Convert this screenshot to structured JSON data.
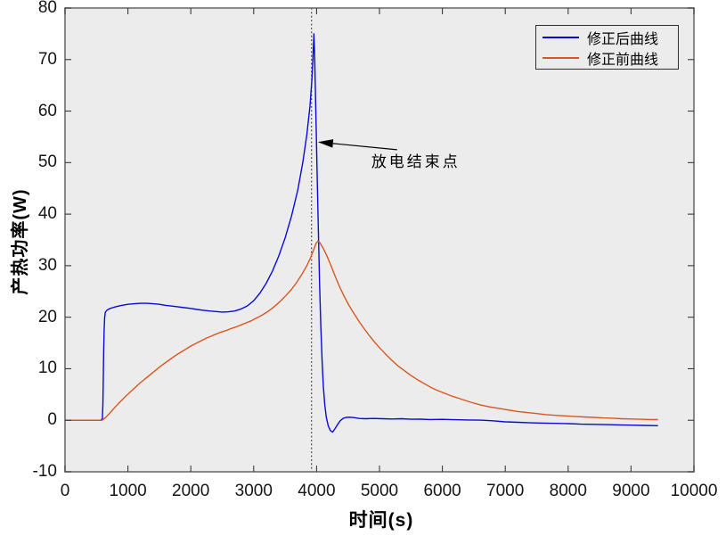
{
  "figure": {
    "background": "#ffffff",
    "plot_bg": "#ececec",
    "axis_color": "#6e6e6e",
    "tick_color": "#3a3a3a",
    "text_color": "#151515"
  },
  "chart_data": {
    "type": "line",
    "title": "",
    "xlabel": "时间(s)",
    "ylabel": "产热功率(W)",
    "xlim": [
      0,
      10000
    ],
    "ylim": [
      -10,
      80
    ],
    "xticks": [
      0,
      1000,
      2000,
      3000,
      4000,
      5000,
      6000,
      7000,
      8000,
      9000,
      10000
    ],
    "yticks": [
      -10,
      0,
      10,
      20,
      30,
      40,
      50,
      60,
      70,
      80
    ],
    "grid": false,
    "legend": {
      "position": "top-right",
      "border": true,
      "entries": [
        "修正后曲线",
        "修正前曲线"
      ]
    },
    "annotation": {
      "label": "放电结束点",
      "vline_x": 3920,
      "vline_style": "dotted",
      "arrow_tip": [
        4020,
        54
      ],
      "arrow_tail": [
        5280,
        52.5
      ],
      "label_pos": [
        4870,
        51
      ]
    },
    "series": [
      {
        "name": "修正后曲线",
        "color": "#0a0ad8",
        "points": [
          [
            0,
            0
          ],
          [
            160,
            0
          ],
          [
            320,
            0
          ],
          [
            470,
            0
          ],
          [
            570,
            0
          ],
          [
            593,
            0.3
          ],
          [
            602,
            3
          ],
          [
            609,
            8.5
          ],
          [
            615,
            13.5
          ],
          [
            622,
            17.5
          ],
          [
            630,
            20
          ],
          [
            642,
            21
          ],
          [
            670,
            21.4
          ],
          [
            720,
            21.7
          ],
          [
            800,
            22
          ],
          [
            900,
            22.3
          ],
          [
            1000,
            22.5
          ],
          [
            1100,
            22.6
          ],
          [
            1200,
            22.7
          ],
          [
            1300,
            22.7
          ],
          [
            1400,
            22.6
          ],
          [
            1500,
            22.5
          ],
          [
            1600,
            22.3
          ],
          [
            1700,
            22.15
          ],
          [
            1800,
            22
          ],
          [
            1900,
            21.85
          ],
          [
            2000,
            21.7
          ],
          [
            2100,
            21.5
          ],
          [
            2200,
            21.35
          ],
          [
            2300,
            21.2
          ],
          [
            2400,
            21.1
          ],
          [
            2500,
            21
          ],
          [
            2600,
            21.05
          ],
          [
            2700,
            21.2
          ],
          [
            2800,
            21.6
          ],
          [
            2900,
            22.2
          ],
          [
            3000,
            23.2
          ],
          [
            3100,
            24.7
          ],
          [
            3200,
            26.6
          ],
          [
            3300,
            29
          ],
          [
            3400,
            31.9
          ],
          [
            3500,
            35.4
          ],
          [
            3600,
            39.6
          ],
          [
            3700,
            44.6
          ],
          [
            3780,
            50
          ],
          [
            3845,
            55.5
          ],
          [
            3895,
            61
          ],
          [
            3925,
            66
          ],
          [
            3945,
            71
          ],
          [
            3957,
            75
          ],
          [
            3968,
            71.5
          ],
          [
            3980,
            64.5
          ],
          [
            3993,
            57
          ],
          [
            4006,
            49.5
          ],
          [
            4020,
            41.5
          ],
          [
            4035,
            33
          ],
          [
            4050,
            25.5
          ],
          [
            4068,
            18
          ],
          [
            4088,
            11.5
          ],
          [
            4108,
            6.5
          ],
          [
            4130,
            3
          ],
          [
            4155,
            0.6
          ],
          [
            4185,
            -1.1
          ],
          [
            4220,
            -2
          ],
          [
            4255,
            -2.3
          ],
          [
            4295,
            -1.6
          ],
          [
            4335,
            -0.8
          ],
          [
            4375,
            -0.1
          ],
          [
            4420,
            0.35
          ],
          [
            4470,
            0.55
          ],
          [
            4530,
            0.6
          ],
          [
            4600,
            0.5
          ],
          [
            4680,
            0.35
          ],
          [
            4780,
            0.3
          ],
          [
            4900,
            0.35
          ],
          [
            5050,
            0.3
          ],
          [
            5200,
            0.25
          ],
          [
            5350,
            0.3
          ],
          [
            5500,
            0.2
          ],
          [
            5650,
            0.22
          ],
          [
            5800,
            0.15
          ],
          [
            6000,
            0.18
          ],
          [
            6200,
            0.1
          ],
          [
            6400,
            0.05
          ],
          [
            6600,
            0.02
          ],
          [
            6800,
            -0.1
          ],
          [
            7000,
            -0.3
          ],
          [
            7200,
            -0.4
          ],
          [
            7400,
            -0.5
          ],
          [
            7600,
            -0.55
          ],
          [
            7800,
            -0.6
          ],
          [
            8000,
            -0.65
          ],
          [
            8200,
            -0.75
          ],
          [
            8400,
            -0.8
          ],
          [
            8600,
            -0.85
          ],
          [
            8800,
            -0.9
          ],
          [
            9000,
            -0.95
          ],
          [
            9200,
            -1
          ],
          [
            9420,
            -1.05
          ]
        ]
      },
      {
        "name": "修正前曲线",
        "color": "#d8571e",
        "points": [
          [
            0,
            0
          ],
          [
            160,
            0
          ],
          [
            320,
            0
          ],
          [
            480,
            0
          ],
          [
            590,
            0
          ],
          [
            650,
            0.6
          ],
          [
            720,
            1.5
          ],
          [
            800,
            2.6
          ],
          [
            880,
            3.6
          ],
          [
            960,
            4.6
          ],
          [
            1040,
            5.5
          ],
          [
            1120,
            6.4
          ],
          [
            1200,
            7.3
          ],
          [
            1280,
            8.1
          ],
          [
            1360,
            8.9
          ],
          [
            1440,
            9.7
          ],
          [
            1520,
            10.5
          ],
          [
            1600,
            11.2
          ],
          [
            1680,
            11.9
          ],
          [
            1760,
            12.6
          ],
          [
            1840,
            13.2
          ],
          [
            1920,
            13.8
          ],
          [
            2000,
            14.4
          ],
          [
            2080,
            14.9
          ],
          [
            2160,
            15.4
          ],
          [
            2240,
            15.9
          ],
          [
            2320,
            16.3
          ],
          [
            2400,
            16.7
          ],
          [
            2480,
            17.1
          ],
          [
            2560,
            17.4
          ],
          [
            2640,
            17.8
          ],
          [
            2720,
            18.1
          ],
          [
            2800,
            18.5
          ],
          [
            2880,
            18.9
          ],
          [
            2960,
            19.3
          ],
          [
            3040,
            19.8
          ],
          [
            3120,
            20.3
          ],
          [
            3200,
            20.9
          ],
          [
            3280,
            21.6
          ],
          [
            3360,
            22.4
          ],
          [
            3440,
            23.3
          ],
          [
            3520,
            24.3
          ],
          [
            3600,
            25.4
          ],
          [
            3680,
            26.7
          ],
          [
            3760,
            28.2
          ],
          [
            3840,
            29.9
          ],
          [
            3900,
            31.4
          ],
          [
            3950,
            33
          ],
          [
            3990,
            34.3
          ],
          [
            4020,
            34.8
          ],
          [
            4050,
            34.5
          ],
          [
            4100,
            33.5
          ],
          [
            4160,
            32
          ],
          [
            4230,
            30
          ],
          [
            4300,
            27.8
          ],
          [
            4370,
            25.8
          ],
          [
            4440,
            24
          ],
          [
            4520,
            22.2
          ],
          [
            4600,
            20.6
          ],
          [
            4680,
            19.1
          ],
          [
            4760,
            17.7
          ],
          [
            4840,
            16.4
          ],
          [
            4920,
            15.2
          ],
          [
            5000,
            14.1
          ],
          [
            5100,
            12.8
          ],
          [
            5200,
            11.6
          ],
          [
            5300,
            10.5
          ],
          [
            5400,
            9.6
          ],
          [
            5500,
            8.7
          ],
          [
            5600,
            7.9
          ],
          [
            5700,
            7.2
          ],
          [
            5800,
            6.5
          ],
          [
            5900,
            5.9
          ],
          [
            6000,
            5.4
          ],
          [
            6150,
            4.7
          ],
          [
            6300,
            4.1
          ],
          [
            6450,
            3.5
          ],
          [
            6600,
            3
          ],
          [
            6750,
            2.6
          ],
          [
            6900,
            2.3
          ],
          [
            7050,
            2
          ],
          [
            7200,
            1.7
          ],
          [
            7350,
            1.5
          ],
          [
            7500,
            1.3
          ],
          [
            7650,
            1.1
          ],
          [
            7800,
            0.95
          ],
          [
            7950,
            0.85
          ],
          [
            8100,
            0.75
          ],
          [
            8250,
            0.65
          ],
          [
            8400,
            0.55
          ],
          [
            8550,
            0.45
          ],
          [
            8700,
            0.4
          ],
          [
            8850,
            0.3
          ],
          [
            9000,
            0.25
          ],
          [
            9150,
            0.2
          ],
          [
            9300,
            0.15
          ],
          [
            9420,
            0.12
          ]
        ]
      }
    ]
  }
}
